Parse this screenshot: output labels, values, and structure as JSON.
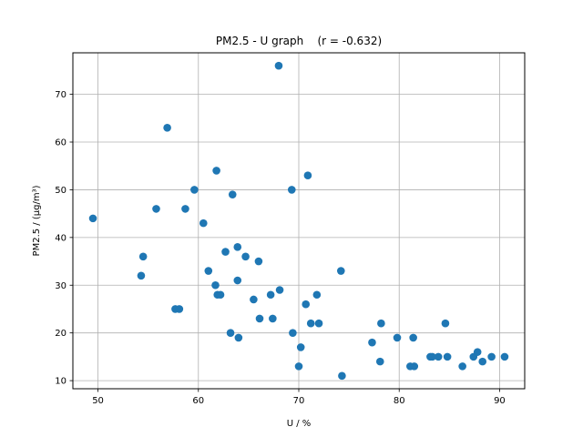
{
  "chart_data": {
    "type": "scatter",
    "title": "PM2.5 - U graph    (r = -0.632)",
    "xlabel": "U / %",
    "ylabel": "PM2.5 / (μg/m³)",
    "xlim": [
      47.5,
      92.5
    ],
    "ylim": [
      8.3,
      78.7
    ],
    "xticks": [
      50,
      60,
      70,
      80,
      90
    ],
    "yticks": [
      10,
      20,
      30,
      40,
      50,
      60,
      70
    ],
    "grid": true,
    "marker_color": "#1f77b4",
    "points": [
      {
        "x": 49.5,
        "y": 44
      },
      {
        "x": 54.3,
        "y": 32
      },
      {
        "x": 54.5,
        "y": 36
      },
      {
        "x": 55.8,
        "y": 46
      },
      {
        "x": 56.9,
        "y": 63
      },
      {
        "x": 57.7,
        "y": 25
      },
      {
        "x": 58.1,
        "y": 25
      },
      {
        "x": 58.7,
        "y": 46
      },
      {
        "x": 59.6,
        "y": 50
      },
      {
        "x": 60.5,
        "y": 43
      },
      {
        "x": 61.0,
        "y": 33
      },
      {
        "x": 61.7,
        "y": 30
      },
      {
        "x": 61.8,
        "y": 54
      },
      {
        "x": 61.9,
        "y": 28
      },
      {
        "x": 62.2,
        "y": 28
      },
      {
        "x": 62.7,
        "y": 37
      },
      {
        "x": 63.2,
        "y": 20
      },
      {
        "x": 63.4,
        "y": 49
      },
      {
        "x": 63.9,
        "y": 38
      },
      {
        "x": 63.9,
        "y": 31
      },
      {
        "x": 64.0,
        "y": 19
      },
      {
        "x": 64.7,
        "y": 36
      },
      {
        "x": 65.5,
        "y": 27
      },
      {
        "x": 66.0,
        "y": 35
      },
      {
        "x": 66.1,
        "y": 23
      },
      {
        "x": 67.2,
        "y": 28
      },
      {
        "x": 67.4,
        "y": 23
      },
      {
        "x": 68.0,
        "y": 76
      },
      {
        "x": 68.1,
        "y": 29
      },
      {
        "x": 69.3,
        "y": 50
      },
      {
        "x": 69.4,
        "y": 20
      },
      {
        "x": 70.0,
        "y": 13
      },
      {
        "x": 70.2,
        "y": 17
      },
      {
        "x": 70.7,
        "y": 26
      },
      {
        "x": 70.9,
        "y": 53
      },
      {
        "x": 71.2,
        "y": 22
      },
      {
        "x": 71.8,
        "y": 28
      },
      {
        "x": 72.0,
        "y": 22
      },
      {
        "x": 74.2,
        "y": 33
      },
      {
        "x": 74.3,
        "y": 11
      },
      {
        "x": 77.3,
        "y": 18
      },
      {
        "x": 78.1,
        "y": 14
      },
      {
        "x": 78.2,
        "y": 22
      },
      {
        "x": 79.8,
        "y": 19
      },
      {
        "x": 81.1,
        "y": 13
      },
      {
        "x": 81.4,
        "y": 19
      },
      {
        "x": 81.5,
        "y": 13
      },
      {
        "x": 83.1,
        "y": 15
      },
      {
        "x": 83.3,
        "y": 15
      },
      {
        "x": 83.9,
        "y": 15
      },
      {
        "x": 84.6,
        "y": 22
      },
      {
        "x": 84.8,
        "y": 15
      },
      {
        "x": 86.3,
        "y": 13
      },
      {
        "x": 87.4,
        "y": 15
      },
      {
        "x": 87.8,
        "y": 16
      },
      {
        "x": 88.3,
        "y": 14
      },
      {
        "x": 89.2,
        "y": 15
      },
      {
        "x": 90.5,
        "y": 15
      }
    ]
  }
}
